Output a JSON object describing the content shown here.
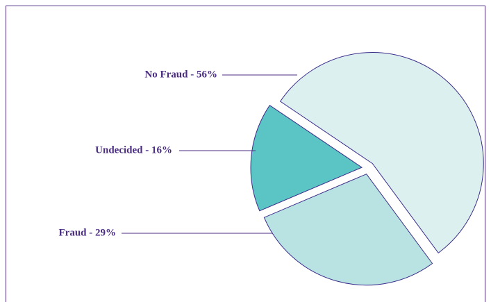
{
  "chart_data": {
    "type": "pie",
    "values": [
      56,
      16,
      29
    ],
    "value_labels": [
      "No Fraud - 56%",
      "Undecided - 16%",
      "Fraud - 29%"
    ],
    "colors": [
      "#dcf0f0",
      "#5bc4c4",
      "#b9e3e3"
    ],
    "order": "counterclockwise"
  }
}
